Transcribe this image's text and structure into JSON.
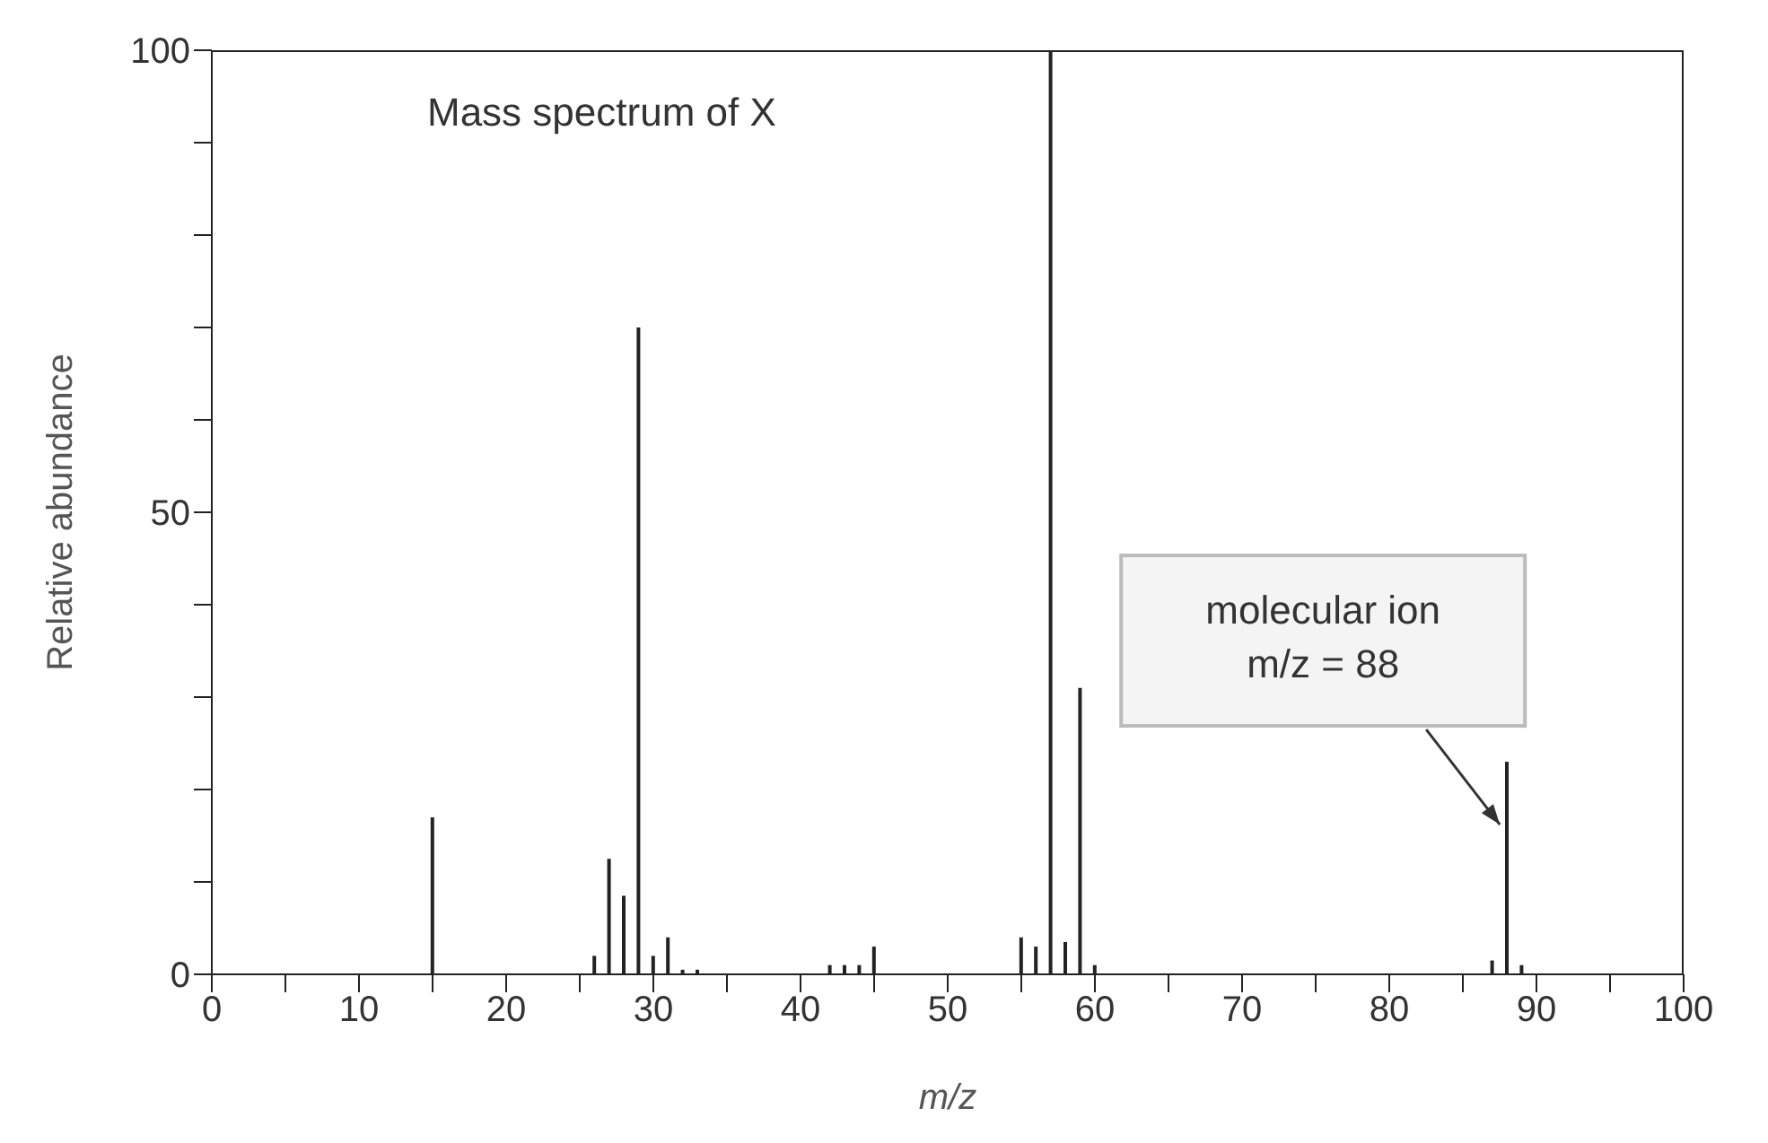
{
  "chart_data": {
    "type": "bar",
    "title": "Mass spectrum of X",
    "xlabel": "m/z",
    "ylabel": "Relative abundance",
    "x": [
      15,
      26,
      27,
      28,
      29,
      30,
      31,
      32,
      33,
      42,
      43,
      44,
      45,
      55,
      56,
      57,
      58,
      59,
      60,
      87,
      88,
      89
    ],
    "values": [
      17,
      2,
      12.5,
      8.5,
      70,
      2,
      4,
      0.5,
      0.5,
      1,
      1,
      1,
      3,
      4,
      3,
      100,
      3.5,
      31,
      1,
      1.5,
      23,
      1
    ],
    "color": "#222222",
    "xlim": [
      0,
      100
    ],
    "xticks": [
      0,
      {
        "value": 5,
        "label": null
      },
      10,
      {
        "value": 15,
        "label": null
      },
      20,
      {
        "value": 25,
        "label": null
      },
      30,
      {
        "value": 35,
        "label": null
      },
      40,
      {
        "value": 45,
        "label": null
      },
      50,
      {
        "value": 55,
        "label": null
      },
      60,
      {
        "value": 65,
        "label": null
      },
      70,
      {
        "value": 75,
        "label": null
      },
      80,
      {
        "value": 85,
        "label": null
      },
      90,
      {
        "value": 95,
        "label": null
      },
      100
    ],
    "ylim": [
      0,
      100
    ],
    "yticks": [
      0,
      {
        "value": 10,
        "label": null
      },
      {
        "value": 20,
        "label": null
      },
      {
        "value": 30,
        "label": null
      },
      {
        "value": 40,
        "label": null
      },
      50,
      {
        "value": 60,
        "label": null
      },
      {
        "value": 70,
        "label": null
      },
      {
        "value": 80,
        "label": null
      },
      {
        "value": 90,
        "label": null
      },
      100
    ],
    "annotations": [
      {
        "text": "molecular ion\nm/z = 88",
        "x": 88,
        "y": 23
      }
    ],
    "grid": false,
    "legend": false
  }
}
